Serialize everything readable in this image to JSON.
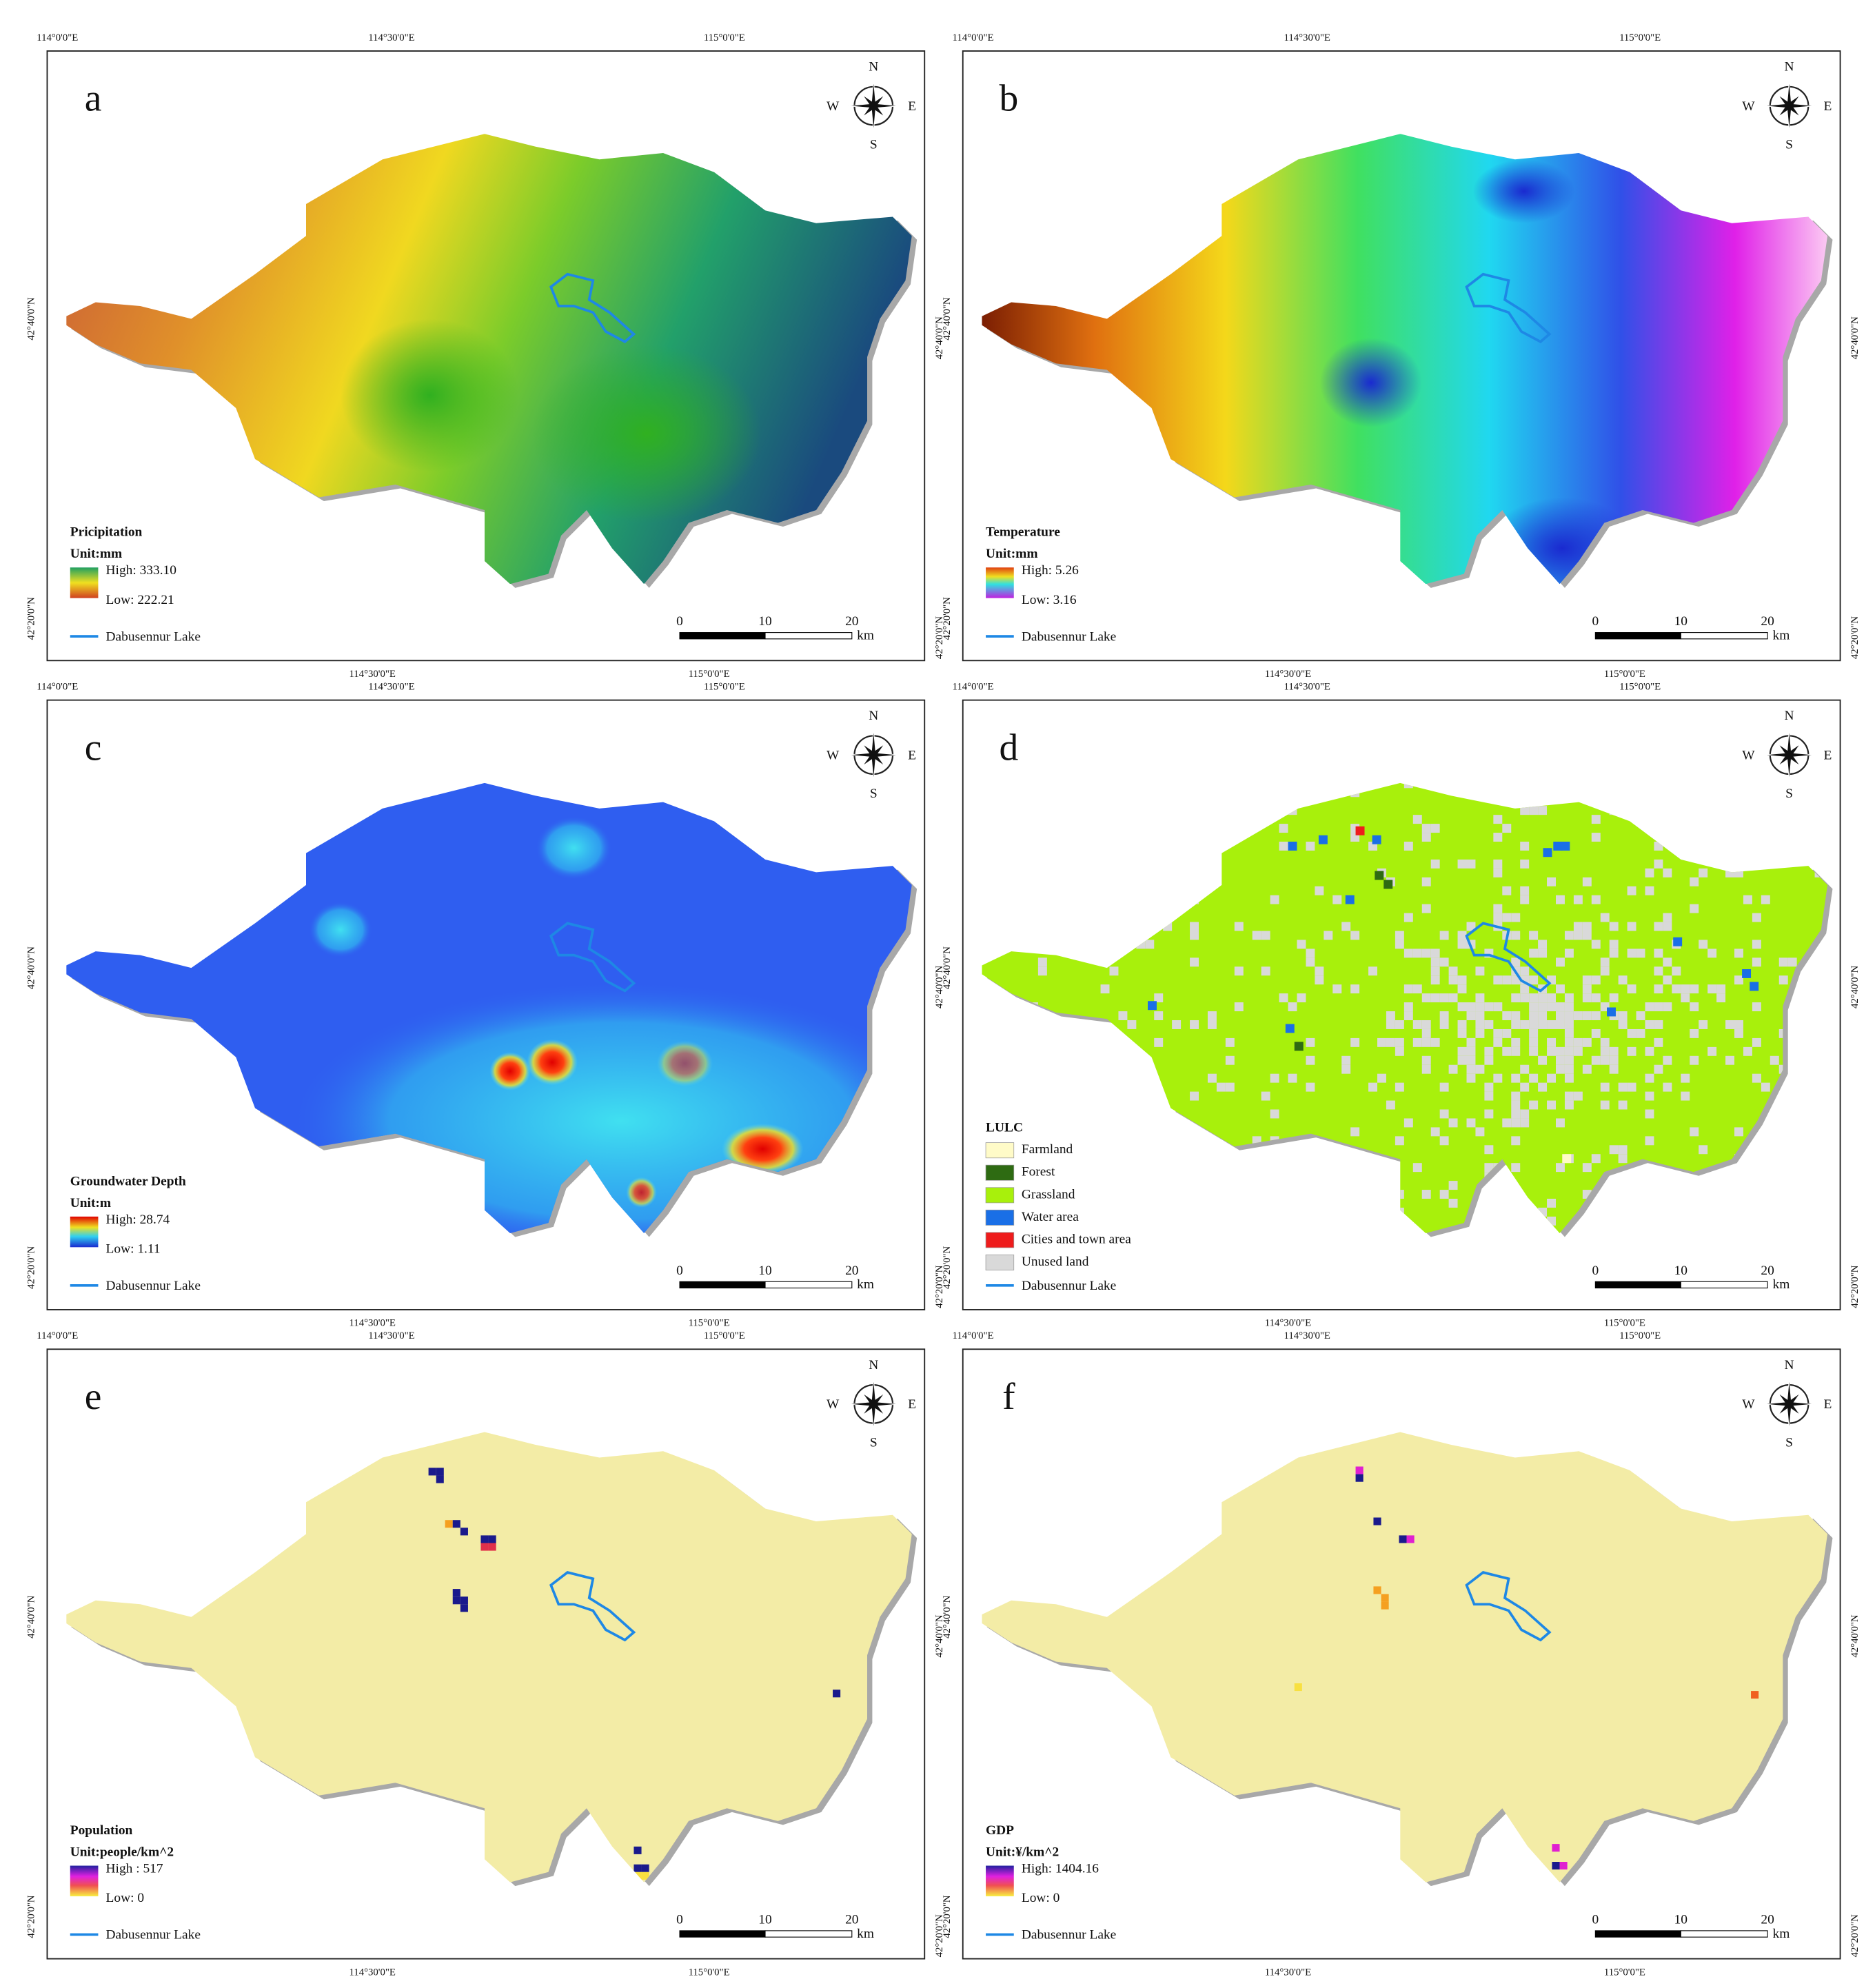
{
  "grid": {
    "lon_top": [
      "114°0'0\"E",
      "114°30'0\"E",
      "115°0'0\"E"
    ],
    "lon_bottom": [
      "114°30'0\"E",
      "115°0'0\"E"
    ],
    "lat": [
      "42°40'0\"N",
      "42°20'0\"N"
    ]
  },
  "compass": {
    "north": "N",
    "west": "W",
    "east": "E",
    "south": "S"
  },
  "scale_bar": {
    "ticks": [
      0,
      10,
      20
    ],
    "unit": "km"
  },
  "lake_label": "Dabusennur Lake",
  "panels": [
    {
      "letter": "a",
      "title": "Pricipitation",
      "unit": "Unit:mm",
      "high": "High: 333.10",
      "low": "Low: 222.21"
    },
    {
      "letter": "b",
      "title": "Temperature",
      "unit": "Unit:mm",
      "high": "High: 5.26",
      "low": "Low: 3.16"
    },
    {
      "letter": "c",
      "title": "Groundwater Depth",
      "unit": "Unit:m",
      "high": "High: 28.74",
      "low": "Low: 1.11"
    },
    {
      "letter": "d",
      "title": "LULC",
      "classes": [
        {
          "name": "Farmland",
          "color": "#fffbc8"
        },
        {
          "name": "Forest",
          "color": "#2e6b12"
        },
        {
          "name": "Grassland",
          "color": "#a8f00c"
        },
        {
          "name": "Water area",
          "color": "#1a6fe6"
        },
        {
          "name": "Cities and town area",
          "color": "#ee1c1c"
        },
        {
          "name": "Unused land",
          "color": "#d9d9d9"
        }
      ]
    },
    {
      "letter": "e",
      "title": "Population",
      "unit": "Unit:people/km^2",
      "high": "High : 517",
      "low": "Low: 0"
    },
    {
      "letter": "f",
      "title": "GDP",
      "unit": "Unit:¥/km^2",
      "high": "High: 1404.16",
      "low": "Low: 0"
    }
  ]
}
